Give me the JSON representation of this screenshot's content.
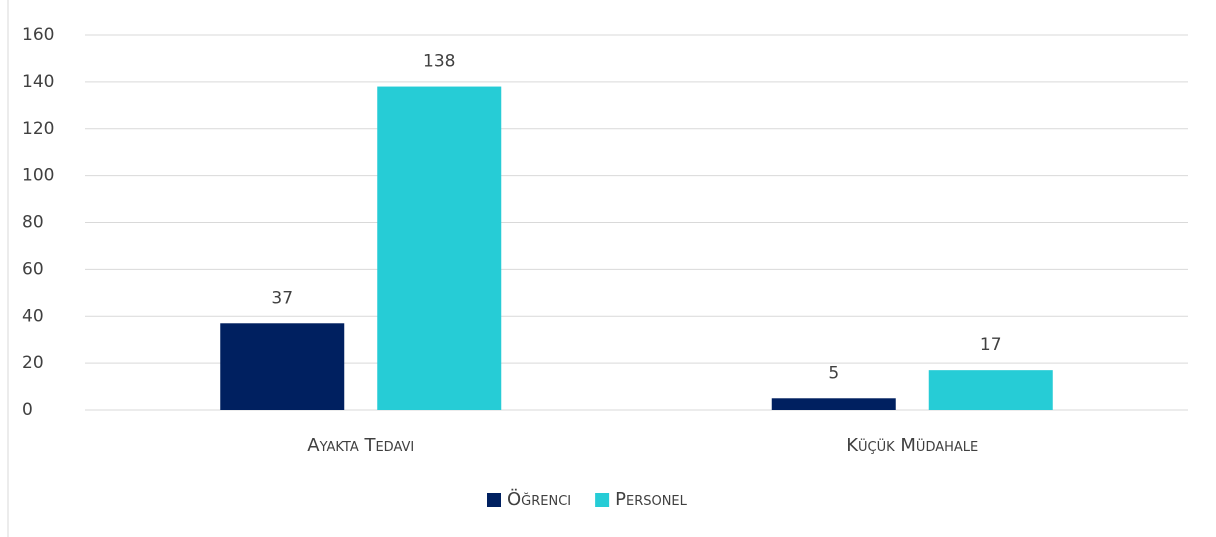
{
  "chart_data": {
    "type": "bar",
    "categories": [
      "Ayakta Tedavi",
      "Küçük Müdahale"
    ],
    "series": [
      {
        "name": "Öğrenci",
        "color": "#002060",
        "values": [
          37,
          5
        ]
      },
      {
        "name": "Personel",
        "color": "#26CCD6",
        "values": [
          138,
          17
        ]
      }
    ],
    "ylim": [
      0,
      160
    ],
    "yticks": [
      0,
      20,
      40,
      60,
      80,
      100,
      120,
      140,
      160
    ],
    "grid": true,
    "legend": "bottom"
  }
}
